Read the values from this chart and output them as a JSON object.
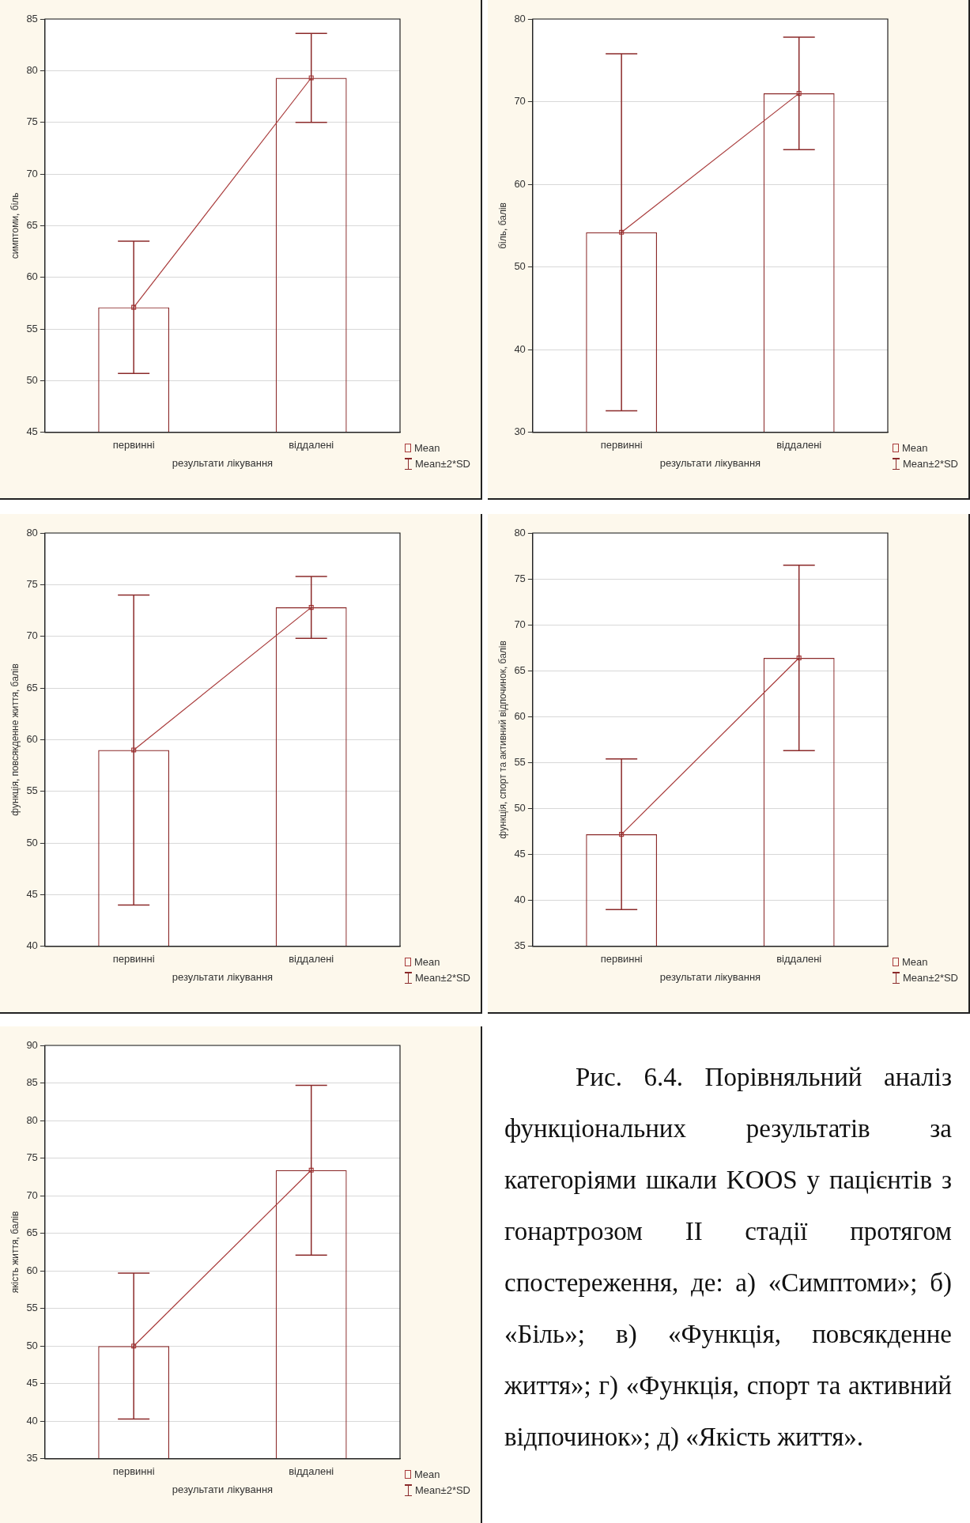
{
  "chart_data": [
    {
      "type": "bar",
      "categories": [
        "первинні",
        "віддалені"
      ],
      "xlabel": "результати лікування",
      "ylabel": "симптоми, біль",
      "ylim": [
        45,
        85
      ],
      "yticks": [
        45,
        50,
        55,
        60,
        65,
        70,
        75,
        80,
        85
      ],
      "grid": "y",
      "legend": "bottom right",
      "annotations": [
        "Mean±2*SD"
      ],
      "series": [
        {
          "type": "line",
          "name": "Mean",
          "color": "#a83a3a",
          "marker": "square",
          "values": [
            57.1,
            79.3
          ]
        },
        {
          "type": "bar",
          "color": "#8b2a2a",
          "values": [
            57.1,
            79.3
          ],
          "errors": [
            6.4,
            4.3
          ]
        }
      ]
    },
    {
      "type": "bar",
      "categories": [
        "первинні",
        "віддалені"
      ],
      "xlabel": "результати лікування",
      "ylabel": "біль, балів",
      "ylim": [
        30,
        80
      ],
      "yticks": [
        30,
        40,
        50,
        60,
        70,
        80
      ],
      "grid": "y",
      "legend": "bottom right",
      "annotations": [
        "Mean±2*SD"
      ],
      "series": [
        {
          "type": "line",
          "name": "Mean",
          "color": "#a83a3a",
          "marker": "square",
          "values": [
            54.2,
            71.0
          ]
        },
        {
          "type": "bar",
          "color": "#8b2a2a",
          "values": [
            54.2,
            71.0
          ],
          "errors": [
            21.6,
            6.8
          ]
        }
      ]
    },
    {
      "type": "bar",
      "categories": [
        "первинні",
        "віддалені"
      ],
      "xlabel": "результати лікування",
      "ylabel": "функція, повсякденне життя, балів",
      "ylim": [
        40,
        80
      ],
      "yticks": [
        40,
        45,
        50,
        55,
        60,
        65,
        70,
        75,
        80
      ],
      "grid": "y",
      "legend": "bottom right",
      "annotations": [
        "Mean±2*SD"
      ],
      "series": [
        {
          "type": "line",
          "name": "Mean",
          "color": "#a83a3a",
          "marker": "square",
          "values": [
            59.0,
            72.8
          ]
        },
        {
          "type": "bar",
          "color": "#8b2a2a",
          "values": [
            59.0,
            72.8
          ],
          "errors": [
            15.0,
            3.0
          ]
        }
      ]
    },
    {
      "type": "bar",
      "categories": [
        "первинні",
        "віддалені"
      ],
      "xlabel": "результати лікування",
      "ylabel": "функція, спорт та активний відпочинок, балів",
      "ylim": [
        35,
        80
      ],
      "yticks": [
        35,
        40,
        45,
        50,
        55,
        60,
        65,
        70,
        75,
        80
      ],
      "grid": "y",
      "legend": "bottom right",
      "annotations": [
        "Mean±2*SD"
      ],
      "series": [
        {
          "type": "line",
          "name": "Mean",
          "color": "#a83a3a",
          "marker": "square",
          "values": [
            47.2,
            66.4
          ]
        },
        {
          "type": "bar",
          "color": "#8b2a2a",
          "values": [
            47.2,
            66.4
          ],
          "errors": [
            8.2,
            10.1
          ]
        }
      ]
    },
    {
      "type": "bar",
      "categories": [
        "первинні",
        "віддалені"
      ],
      "xlabel": "результати лікування",
      "ylabel": "якість життя, балів",
      "ylim": [
        35,
        90
      ],
      "yticks": [
        35,
        40,
        45,
        50,
        55,
        60,
        65,
        70,
        75,
        80,
        85,
        90
      ],
      "grid": "y",
      "legend": "bottom right",
      "annotations": [
        "Mean±2*SD"
      ],
      "series": [
        {
          "type": "line",
          "name": "Mean",
          "color": "#a83a3a",
          "marker": "square",
          "values": [
            50.0,
            73.4
          ]
        },
        {
          "type": "bar",
          "color": "#8b2a2a",
          "values": [
            50.0,
            73.4
          ],
          "errors": [
            9.7,
            11.3
          ]
        }
      ]
    },
    {
      "type": "other",
      "annotations": [
        "Рис. 6.4. Порівняльний аналіз функціональних результатів за категоріями шкали KOOS у пацієнтів з гонартрозом II стадії протягом спостереження, де: а) «Симптоми»; б) «Біль»; в) «Функція, повсякденне життя»; г) «Функція, спорт та активний відпочинок»; д) «Якість життя»."
      ]
    }
  ]
}
